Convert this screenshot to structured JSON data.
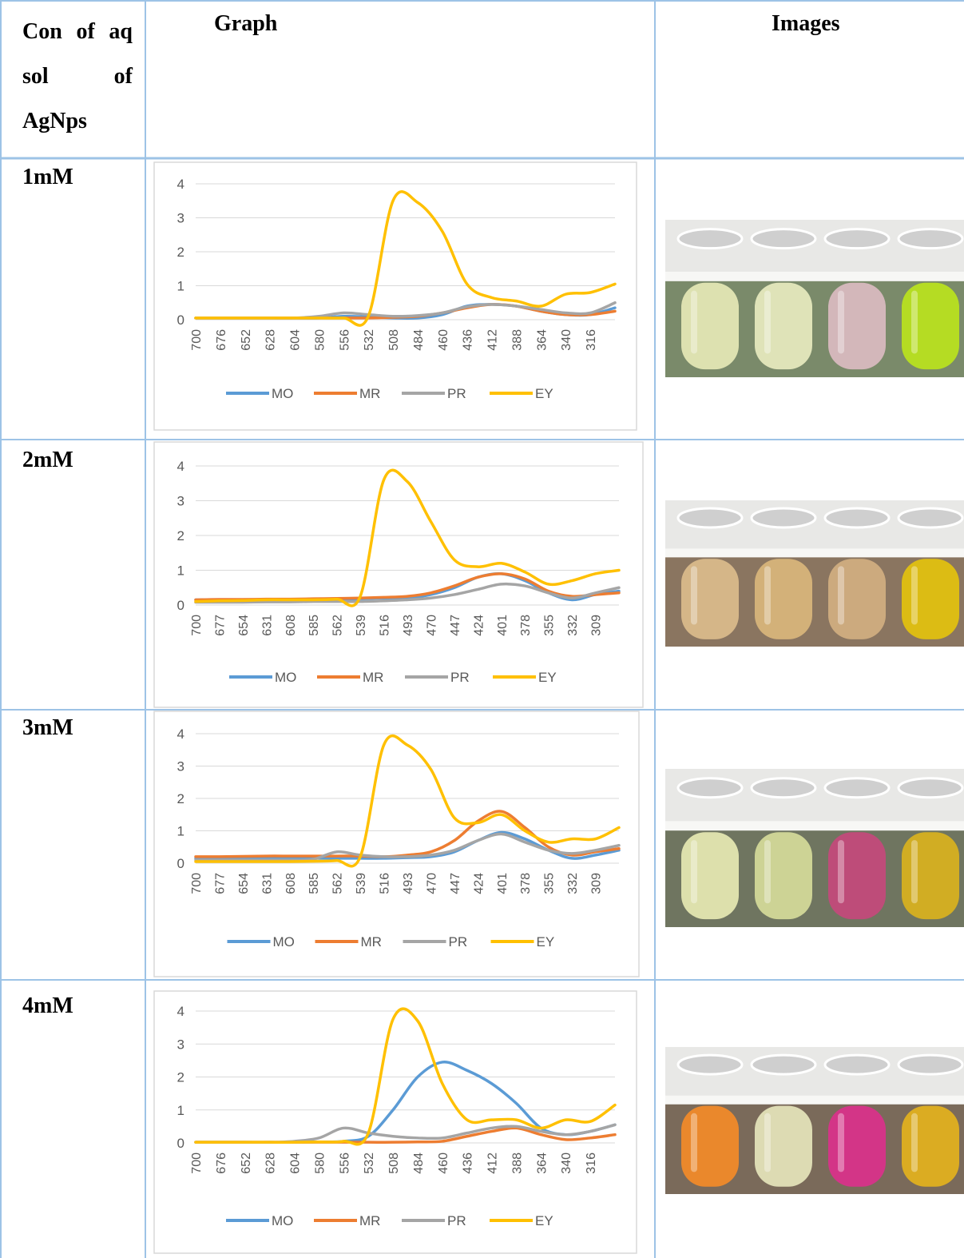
{
  "table": {
    "header": [
      "Con of aq sol of AgNps",
      "Graph",
      "Images"
    ],
    "row_labels": [
      "1mM",
      "2mM",
      "3mM",
      "4mM"
    ]
  },
  "chart_data": [
    {
      "type": "line",
      "categories": [
        "700",
        "676",
        "652",
        "628",
        "604",
        "580",
        "556",
        "532",
        "508",
        "484",
        "460",
        "436",
        "412",
        "388",
        "364",
        "340",
        "316",
        null
      ],
      "series": [
        {
          "name": "MO",
          "color": "#5b9bd5",
          "values": [
            0.05,
            0.05,
            0.05,
            0.05,
            0.05,
            0.05,
            0.1,
            0.08,
            0.05,
            0.05,
            0.15,
            0.4,
            0.45,
            0.4,
            0.25,
            0.15,
            0.15,
            0.35
          ]
        },
        {
          "name": "MR",
          "color": "#ed7d31",
          "values": [
            0.05,
            0.05,
            0.05,
            0.05,
            0.05,
            0.05,
            0.05,
            0.05,
            0.07,
            0.1,
            0.2,
            0.35,
            0.45,
            0.4,
            0.25,
            0.15,
            0.15,
            0.25
          ]
        },
        {
          "name": "PR",
          "color": "#a5a5a5",
          "values": [
            0.05,
            0.05,
            0.05,
            0.05,
            0.05,
            0.1,
            0.2,
            0.15,
            0.1,
            0.12,
            0.2,
            0.38,
            0.45,
            0.4,
            0.3,
            0.2,
            0.2,
            0.5
          ]
        },
        {
          "name": "EY",
          "color": "#ffc000",
          "values": [
            0.05,
            0.05,
            0.05,
            0.05,
            0.05,
            0.05,
            0.05,
            0.1,
            3.5,
            3.45,
            2.6,
            1.05,
            0.65,
            0.55,
            0.4,
            0.75,
            0.8,
            1.05
          ]
        }
      ],
      "ylim": [
        0,
        4
      ],
      "yticks": [
        0,
        1,
        2,
        3,
        4
      ],
      "grid": true,
      "legend": "bottom"
    },
    {
      "type": "line",
      "categories": [
        "700",
        "677",
        "654",
        "631",
        "608",
        "585",
        "562",
        "539",
        "516",
        "493",
        "470",
        "447",
        "424",
        "401",
        "378",
        "355",
        "332",
        "309",
        null
      ],
      "series": [
        {
          "name": "MO",
          "color": "#5b9bd5",
          "values": [
            0.15,
            0.15,
            0.15,
            0.15,
            0.15,
            0.15,
            0.16,
            0.18,
            0.2,
            0.2,
            0.3,
            0.5,
            0.8,
            0.9,
            0.7,
            0.35,
            0.15,
            0.3,
            0.4
          ]
        },
        {
          "name": "MR",
          "color": "#ed7d31",
          "values": [
            0.15,
            0.16,
            0.16,
            0.17,
            0.17,
            0.18,
            0.19,
            0.2,
            0.22,
            0.25,
            0.35,
            0.55,
            0.8,
            0.9,
            0.75,
            0.4,
            0.25,
            0.3,
            0.35
          ]
        },
        {
          "name": "PR",
          "color": "#a5a5a5",
          "values": [
            0.08,
            0.08,
            0.08,
            0.09,
            0.09,
            0.1,
            0.1,
            0.1,
            0.12,
            0.15,
            0.2,
            0.3,
            0.45,
            0.6,
            0.55,
            0.35,
            0.2,
            0.35,
            0.5
          ]
        },
        {
          "name": "EY",
          "color": "#ffc000",
          "values": [
            0.1,
            0.12,
            0.13,
            0.15,
            0.15,
            0.15,
            0.17,
            0.25,
            3.6,
            3.55,
            2.4,
            1.3,
            1.1,
            1.2,
            0.95,
            0.6,
            0.7,
            0.9,
            1.0
          ]
        }
      ],
      "ylim": [
        0,
        4
      ],
      "yticks": [
        0,
        1,
        2,
        3,
        4
      ],
      "grid": true,
      "legend": "bottom"
    },
    {
      "type": "line",
      "categories": [
        "700",
        "677",
        "654",
        "631",
        "608",
        "585",
        "562",
        "539",
        "516",
        "493",
        "470",
        "447",
        "424",
        "401",
        "378",
        "355",
        "332",
        "309",
        null
      ],
      "series": [
        {
          "name": "MO",
          "color": "#5b9bd5",
          "values": [
            0.15,
            0.15,
            0.15,
            0.15,
            0.15,
            0.15,
            0.15,
            0.15,
            0.15,
            0.17,
            0.2,
            0.35,
            0.7,
            0.95,
            0.75,
            0.4,
            0.15,
            0.25,
            0.4
          ]
        },
        {
          "name": "MR",
          "color": "#ed7d31",
          "values": [
            0.2,
            0.2,
            0.21,
            0.22,
            0.22,
            0.22,
            0.22,
            0.22,
            0.2,
            0.25,
            0.35,
            0.7,
            1.3,
            1.6,
            1.1,
            0.5,
            0.25,
            0.35,
            0.45
          ]
        },
        {
          "name": "PR",
          "color": "#a5a5a5",
          "values": [
            0.1,
            0.1,
            0.1,
            0.1,
            0.1,
            0.12,
            0.35,
            0.25,
            0.2,
            0.2,
            0.25,
            0.4,
            0.7,
            0.9,
            0.65,
            0.4,
            0.3,
            0.4,
            0.55
          ]
        },
        {
          "name": "EY",
          "color": "#ffc000",
          "values": [
            0.05,
            0.05,
            0.05,
            0.05,
            0.05,
            0.06,
            0.08,
            0.2,
            3.65,
            3.65,
            2.9,
            1.4,
            1.25,
            1.5,
            1.0,
            0.65,
            0.75,
            0.75,
            1.1
          ]
        }
      ],
      "ylim": [
        0,
        4
      ],
      "yticks": [
        0,
        1,
        2,
        3,
        4
      ],
      "grid": true,
      "legend": "bottom"
    },
    {
      "type": "line",
      "categories": [
        "700",
        "676",
        "652",
        "628",
        "604",
        "580",
        "556",
        "532",
        "508",
        "484",
        "460",
        "436",
        "412",
        "388",
        "364",
        "340",
        "316",
        null
      ],
      "series": [
        {
          "name": "MO",
          "color": "#5b9bd5",
          "values": [
            0.02,
            0.02,
            0.02,
            0.02,
            0.02,
            0.03,
            0.05,
            0.2,
            1.0,
            2.0,
            2.45,
            2.2,
            1.8,
            1.2,
            0.45,
            0.25,
            0.35,
            0.55
          ]
        },
        {
          "name": "MR",
          "color": "#ed7d31",
          "values": [
            0.02,
            0.02,
            0.02,
            0.02,
            0.02,
            0.02,
            0.02,
            0.02,
            0.02,
            0.03,
            0.05,
            0.2,
            0.35,
            0.45,
            0.25,
            0.1,
            0.15,
            0.25
          ]
        },
        {
          "name": "PR",
          "color": "#a5a5a5",
          "values": [
            0.02,
            0.02,
            0.02,
            0.02,
            0.05,
            0.15,
            0.45,
            0.3,
            0.2,
            0.15,
            0.15,
            0.3,
            0.45,
            0.5,
            0.35,
            0.25,
            0.35,
            0.55
          ]
        },
        {
          "name": "EY",
          "color": "#ffc000",
          "values": [
            0.02,
            0.02,
            0.02,
            0.02,
            0.02,
            0.03,
            0.05,
            0.3,
            3.75,
            3.7,
            1.8,
            0.7,
            0.7,
            0.7,
            0.45,
            0.7,
            0.65,
            1.15
          ]
        }
      ],
      "ylim": [
        0,
        4
      ],
      "yticks": [
        0,
        1,
        2,
        3,
        4
      ],
      "grid": true,
      "legend": "bottom"
    }
  ]
}
